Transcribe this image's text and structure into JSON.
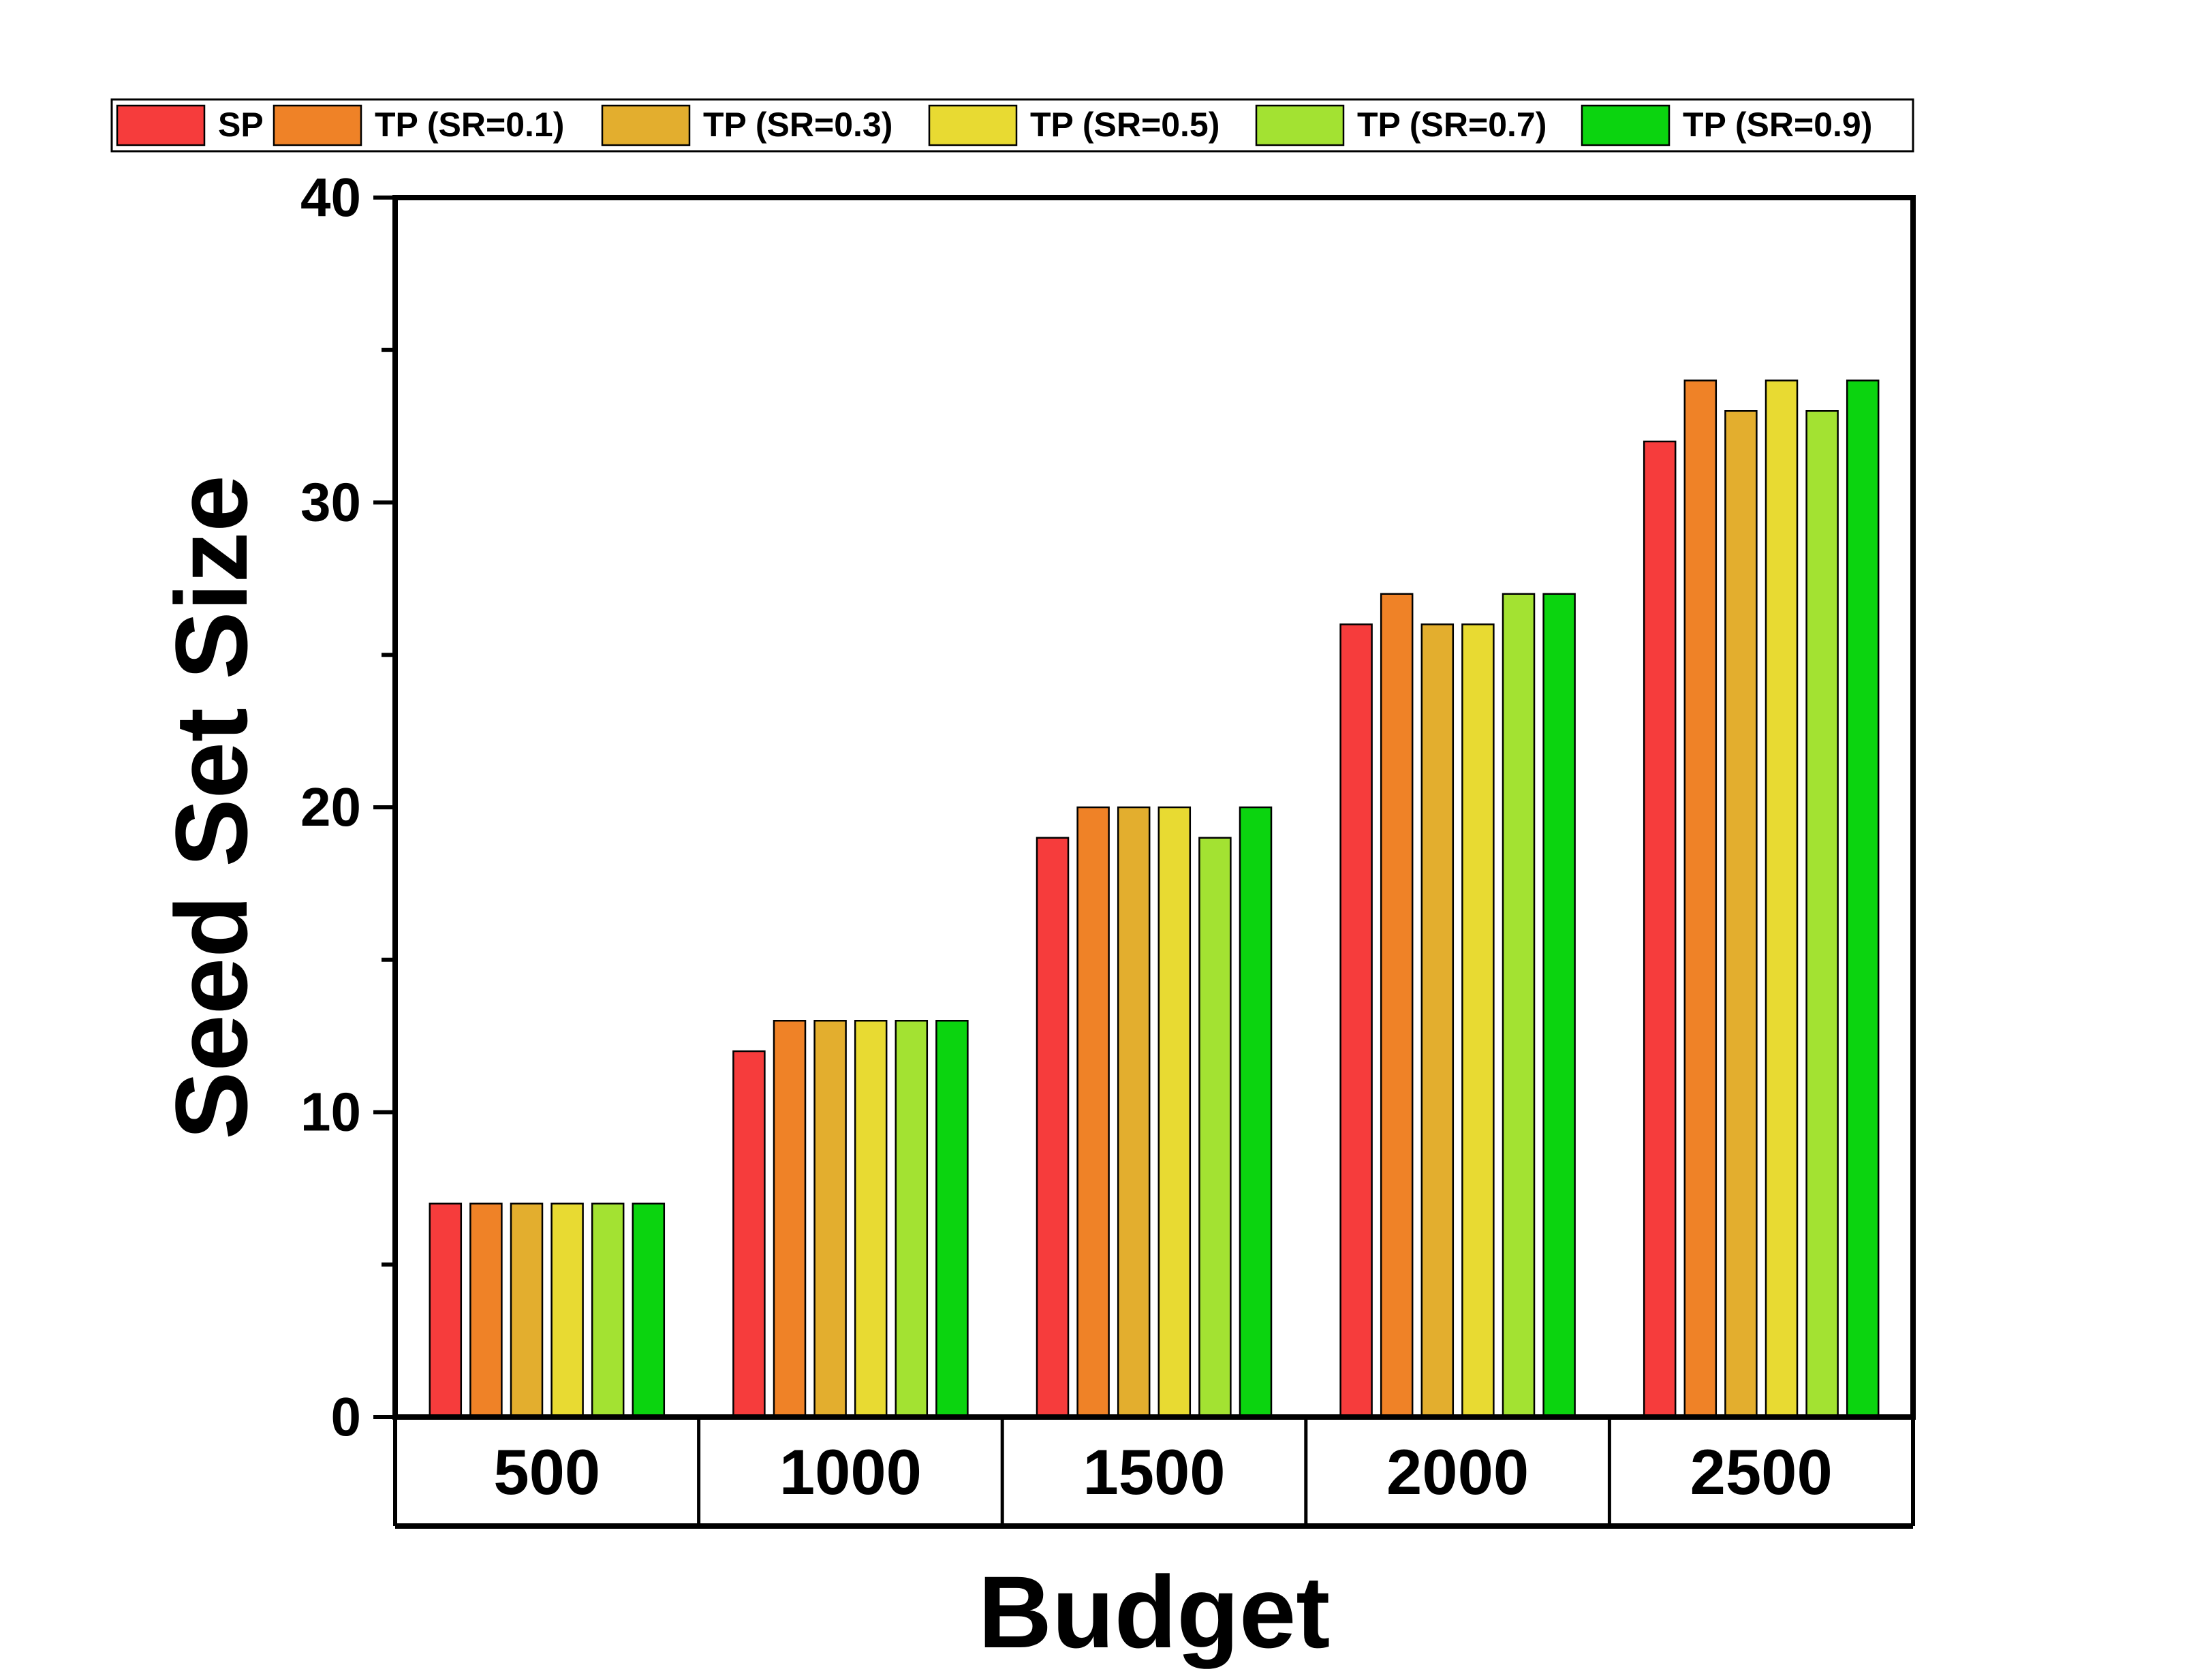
{
  "chart_data": {
    "type": "bar",
    "title": "",
    "xlabel": "Budget",
    "ylabel": "Seed Set Size",
    "categories": [
      "500",
      "1000",
      "1500",
      "2000",
      "2500"
    ],
    "ylim": [
      0,
      40
    ],
    "yticks": [
      0,
      10,
      20,
      30,
      40
    ],
    "ytick_labels": [
      "0",
      "10",
      "20",
      "30",
      "40"
    ],
    "grid": false,
    "legend_position": "top",
    "series": [
      {
        "name": "SP",
        "color": "#f63c3c",
        "values": [
          7,
          12,
          19,
          26,
          32
        ]
      },
      {
        "name": "TP (SR=0.1)",
        "color": "#ef8227",
        "values": [
          7,
          13,
          20,
          27,
          34
        ]
      },
      {
        "name": "TP (SR=0.3)",
        "color": "#e3ae2e",
        "values": [
          7,
          13,
          20,
          26,
          33
        ]
      },
      {
        "name": "TP (SR=0.5)",
        "color": "#e8da32",
        "values": [
          7,
          13,
          20,
          26,
          34
        ]
      },
      {
        "name": "TP (SR=0.7)",
        "color": "#a3e232",
        "values": [
          7,
          13,
          19,
          27,
          33
        ]
      },
      {
        "name": "TP (SR=0.9)",
        "color": "#0bd40f",
        "values": [
          7,
          13,
          20,
          27,
          34
        ]
      }
    ]
  }
}
